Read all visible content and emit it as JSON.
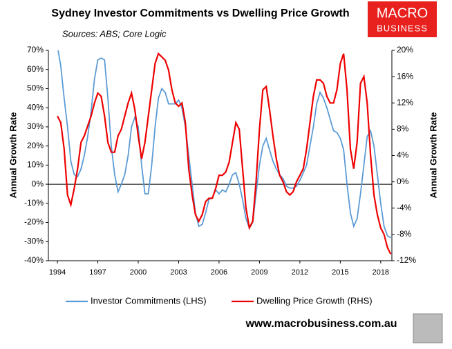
{
  "chart_data": {
    "type": "line",
    "title": "Sydney Investor Commitments vs Dwelling Price Growth",
    "subtitle": "Sources: ABS; Core Logic",
    "y_label": "Annual Growth Rate",
    "y2_label": "Annual Growth Rate",
    "x": [
      1994,
      1994.25,
      1994.5,
      1994.75,
      1995,
      1995.25,
      1995.5,
      1995.75,
      1996,
      1996.25,
      1996.5,
      1996.75,
      1997,
      1997.25,
      1997.5,
      1997.75,
      1998,
      1998.25,
      1998.5,
      1998.75,
      1999,
      1999.25,
      1999.5,
      1999.75,
      2000,
      2000.25,
      2000.5,
      2000.75,
      2001,
      2001.25,
      2001.5,
      2001.75,
      2002,
      2002.25,
      2002.5,
      2002.75,
      2003,
      2003.25,
      2003.5,
      2003.75,
      2004,
      2004.25,
      2004.5,
      2004.75,
      2005,
      2005.25,
      2005.5,
      2005.75,
      2006,
      2006.25,
      2006.5,
      2006.75,
      2007,
      2007.25,
      2007.5,
      2007.75,
      2008,
      2008.25,
      2008.5,
      2008.75,
      2009,
      2009.25,
      2009.5,
      2009.75,
      2010,
      2010.25,
      2010.5,
      2010.75,
      2011,
      2011.25,
      2011.5,
      2011.75,
      2012,
      2012.25,
      2012.5,
      2012.75,
      2013,
      2013.25,
      2013.5,
      2013.75,
      2014,
      2014.25,
      2014.5,
      2014.75,
      2015,
      2015.25,
      2015.5,
      2015.75,
      2016,
      2016.25,
      2016.5,
      2016.75,
      2017,
      2017.25,
      2017.5,
      2017.75,
      2018,
      2018.25,
      2018.5,
      2018.75
    ],
    "series": [
      {
        "name": "Investor Commitments (LHS)",
        "color": "#5b9bd5",
        "axis": "y",
        "values": [
          72,
          62,
          45,
          30,
          12,
          5,
          4,
          8,
          15,
          25,
          38,
          55,
          65,
          66,
          65,
          45,
          20,
          5,
          -4,
          0,
          5,
          15,
          30,
          35,
          30,
          10,
          -5,
          -5,
          10,
          30,
          45,
          50,
          48,
          42,
          42,
          42,
          44,
          40,
          30,
          15,
          0,
          -15,
          -22,
          -21,
          -15,
          -8,
          -7,
          -3,
          -5,
          -3,
          -4,
          0,
          5,
          6,
          0,
          -8,
          -18,
          -23,
          -20,
          -5,
          10,
          20,
          24,
          18,
          12,
          8,
          5,
          3,
          -1,
          -2,
          -2,
          -1,
          2,
          6,
          10,
          20,
          30,
          42,
          48,
          45,
          40,
          34,
          28,
          27,
          24,
          18,
          0,
          -15,
          -22,
          -18,
          -5,
          10,
          25,
          28,
          20,
          5,
          -10,
          -22,
          -27,
          -28
        ]
      },
      {
        "name": "Dwelling Price Growth (RHS)",
        "color": "#ee0000",
        "axis": "y2",
        "values": [
          10,
          9,
          5,
          -2,
          -3.5,
          -1,
          2,
          6,
          7,
          8.5,
          10,
          12,
          13.5,
          13,
          10,
          6,
          4.5,
          4.5,
          7,
          8,
          10,
          12,
          13.5,
          11,
          7,
          3.5,
          6,
          10,
          14,
          18,
          19.5,
          19,
          18.5,
          17,
          14,
          12,
          11.5,
          12,
          9,
          2,
          -2,
          -5,
          -6,
          -5,
          -3,
          -2.5,
          -2.5,
          -1,
          1,
          1,
          1.5,
          3,
          6,
          9,
          8,
          2,
          -4,
          -7,
          -6,
          0,
          8,
          14,
          14.5,
          11,
          7,
          3.5,
          1,
          0,
          -1.5,
          -2,
          -1.5,
          0,
          1,
          2,
          5,
          9,
          13,
          15.5,
          15.5,
          15,
          13,
          12,
          12,
          14,
          18,
          19.5,
          14,
          5,
          2,
          6,
          15,
          16,
          12,
          4,
          -2,
          -5,
          -7,
          -8,
          -10,
          -11
        ]
      }
    ],
    "xlim": [
      1993.33,
      2018.83
    ],
    "xticks": [
      1994,
      1997,
      2000,
      2003,
      2006,
      2009,
      2012,
      2015,
      2018
    ],
    "ylim": [
      -40,
      70
    ],
    "yticks": [
      {
        "value": -40,
        "label": "-40%"
      },
      {
        "value": -30,
        "label": "-30%"
      },
      {
        "value": -20,
        "label": "-20%"
      },
      {
        "value": -10,
        "label": "-10%"
      },
      {
        "value": 0,
        "label": "0%"
      },
      {
        "value": 10,
        "label": "10%"
      },
      {
        "value": 20,
        "label": "20%"
      },
      {
        "value": 30,
        "label": "30%"
      },
      {
        "value": 40,
        "label": "40%"
      },
      {
        "value": 50,
        "label": "50%"
      },
      {
        "value": 60,
        "label": "60%"
      },
      {
        "value": 70,
        "label": "70%"
      }
    ],
    "y2lim": [
      -12,
      20
    ],
    "y2ticks": [
      {
        "value": -12,
        "label": "-12%"
      },
      {
        "value": -8,
        "label": "-8%"
      },
      {
        "value": -4,
        "label": "-4%"
      },
      {
        "value": 0,
        "label": "0%"
      },
      {
        "value": 4,
        "label": "4%"
      },
      {
        "value": 8,
        "label": "8%"
      },
      {
        "value": 12,
        "label": "12%"
      },
      {
        "value": 16,
        "label": "16%"
      },
      {
        "value": 20,
        "label": "20%"
      }
    ],
    "legend": "bottom"
  },
  "logo": {
    "line1": "MACRO",
    "line2": "BUSINESS"
  },
  "footer": "www.macrobusiness.com.au"
}
